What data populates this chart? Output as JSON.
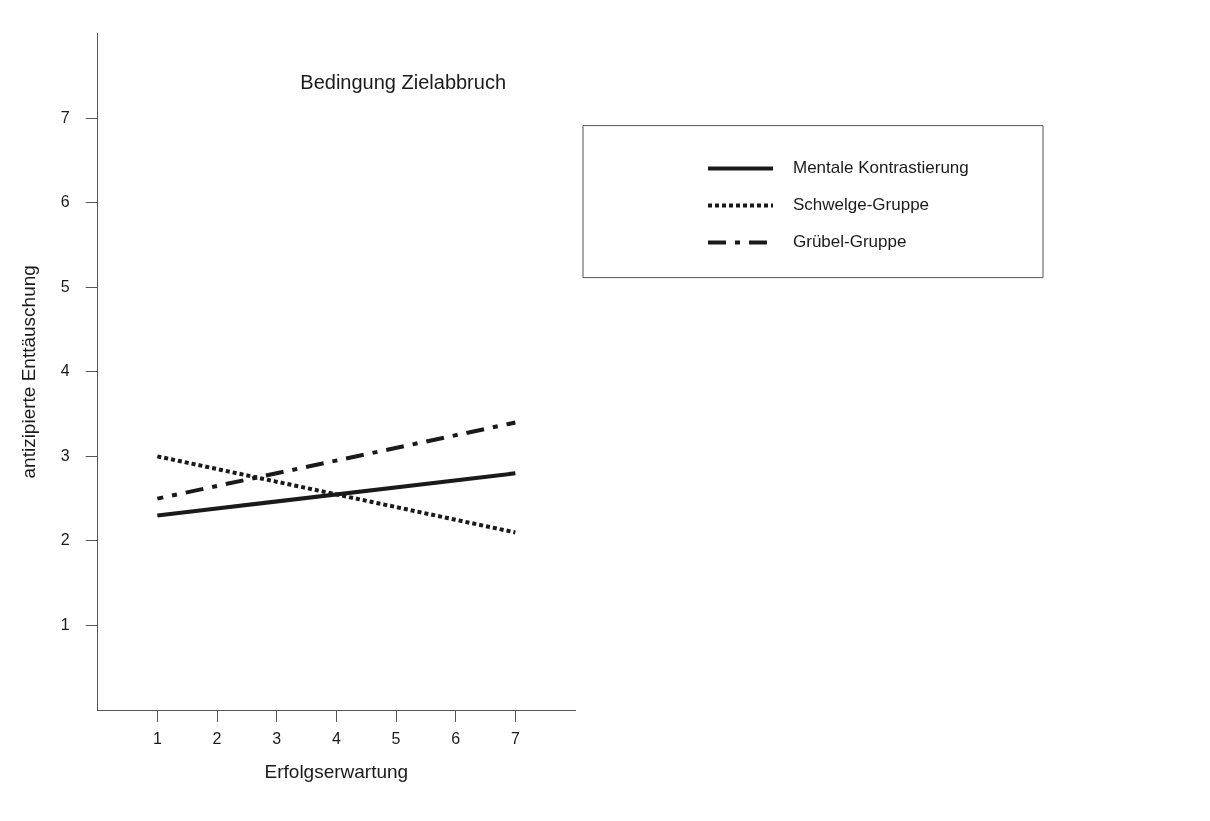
{
  "chart_data": {
    "type": "line",
    "title": "Bedingung Zielabbruch",
    "xlabel": "Erfolgserwartung",
    "ylabel": "antizipierte Enttäuschung",
    "x": [
      1,
      7
    ],
    "series": [
      {
        "name": "Mentale Kontrastierung",
        "color": "#1a1a1a",
        "values": [
          2.3,
          2.8
        ],
        "line_style": "solid"
      },
      {
        "name": "Schwelge-Gruppe",
        "color": "#1a1a1a",
        "values": [
          3.0,
          2.1
        ],
        "line_style": "dotted"
      },
      {
        "name": "Grübel-Gruppe",
        "color": "#1a1a1a",
        "values": [
          2.5,
          3.4
        ],
        "line_style": "dashdot"
      }
    ],
    "xlim": [
      0,
      8
    ],
    "xticks": [
      1,
      2,
      3,
      4,
      5,
      6,
      7
    ],
    "ylim": [
      0,
      8
    ],
    "yticks": [
      1,
      2,
      3,
      4,
      5,
      6,
      7
    ],
    "grid": false,
    "legend": "top right",
    "marker": "none"
  }
}
